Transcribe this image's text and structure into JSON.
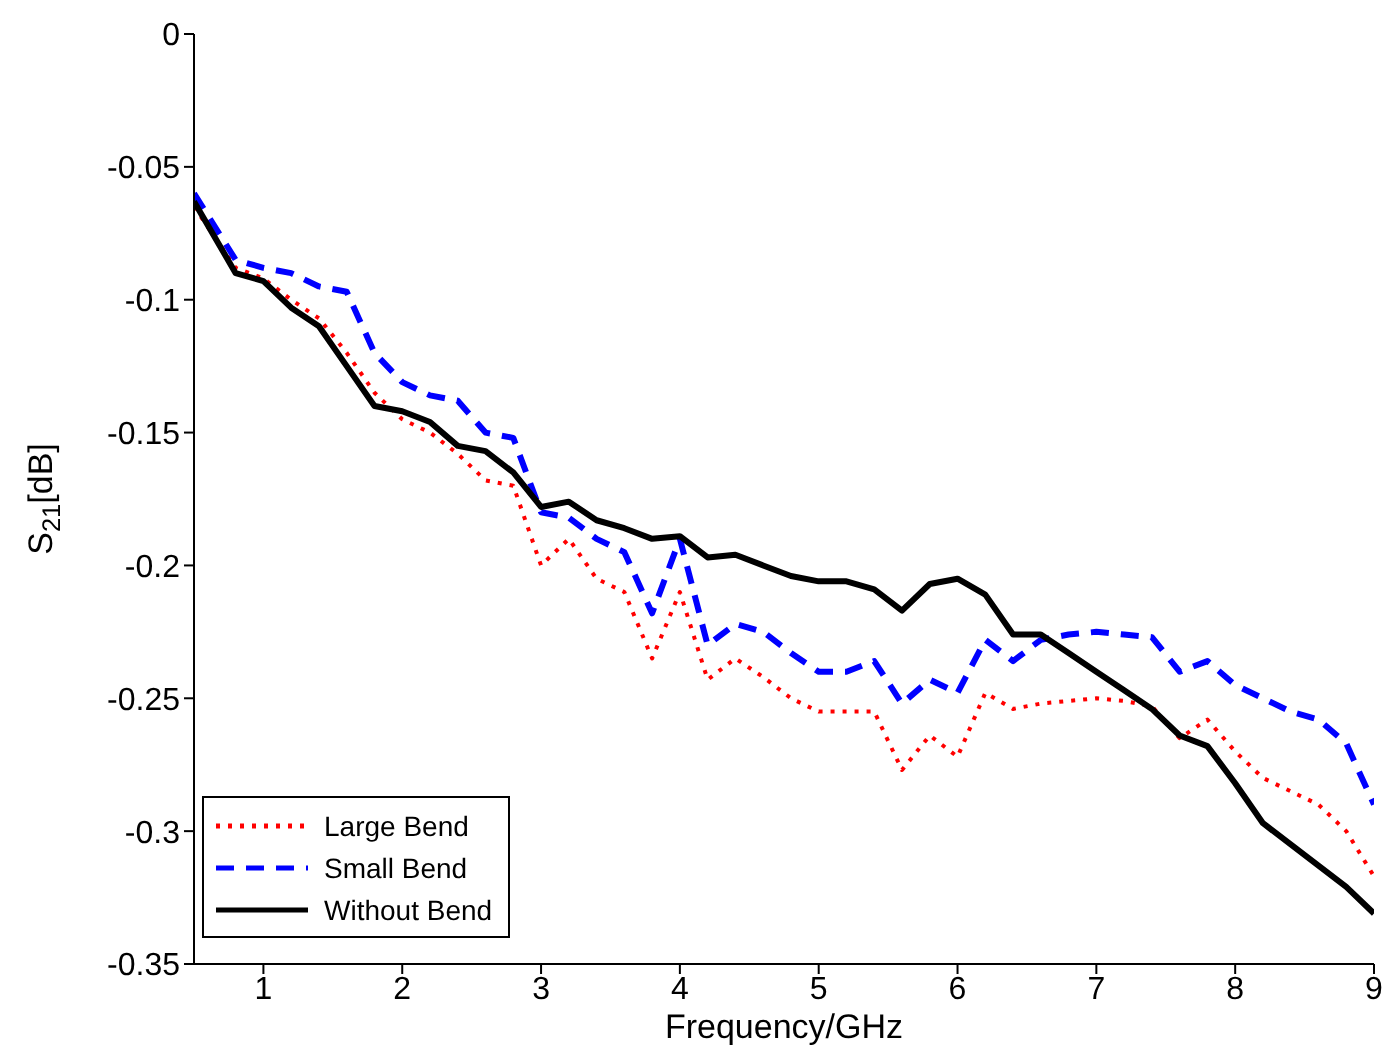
{
  "chart_data": {
    "type": "line",
    "xlabel": "Frequency/GHz",
    "ylabel": "S$_{21}$[dB]",
    "x": [
      0.5,
      0.8,
      1,
      1.2,
      1.4,
      1.6,
      1.8,
      2,
      2.2,
      2.4,
      2.6,
      2.8,
      3,
      3.2,
      3.4,
      3.6,
      3.8,
      4,
      4.2,
      4.4,
      4.6,
      4.8,
      5,
      5.2,
      5.4,
      5.6,
      5.8,
      6,
      6.2,
      6.4,
      6.6,
      6.8,
      7,
      7.2,
      7.4,
      7.6,
      7.8,
      8,
      8.2,
      8.4,
      8.6,
      8.8,
      9
    ],
    "series": [
      {
        "name": "Large Bend",
        "color": "#ff0000",
        "line_style": "dotted",
        "values": [
          -0.065,
          -0.088,
          -0.092,
          -0.1,
          -0.107,
          -0.12,
          -0.135,
          -0.145,
          -0.15,
          -0.158,
          -0.168,
          -0.17,
          -0.2,
          -0.19,
          -0.205,
          -0.21,
          -0.235,
          -0.21,
          -0.243,
          -0.235,
          -0.242,
          -0.25,
          -0.255,
          -0.255,
          -0.255,
          -0.277,
          -0.264,
          -0.272,
          -0.248,
          -0.254,
          -0.252,
          -0.251,
          -0.25,
          -0.251,
          -0.253,
          -0.265,
          -0.258,
          -0.27,
          -0.28,
          -0.285,
          -0.29,
          -0.3,
          -0.317
        ]
      },
      {
        "name": "Small Bend",
        "color": "#0000ff",
        "line_style": "dashed",
        "values": [
          -0.06,
          -0.085,
          -0.088,
          -0.09,
          -0.095,
          -0.097,
          -0.12,
          -0.131,
          -0.136,
          -0.138,
          -0.15,
          -0.152,
          -0.18,
          -0.182,
          -0.19,
          -0.195,
          -0.218,
          -0.19,
          -0.23,
          -0.222,
          -0.225,
          -0.233,
          -0.24,
          -0.24,
          -0.236,
          -0.252,
          -0.243,
          -0.248,
          -0.228,
          -0.236,
          -0.228,
          -0.226,
          -0.225,
          -0.226,
          -0.227,
          -0.24,
          -0.236,
          -0.245,
          -0.25,
          -0.255,
          -0.258,
          -0.267,
          -0.29
        ]
      },
      {
        "name": "Without Bend",
        "color": "#000000",
        "line_style": "solid",
        "values": [
          -0.063,
          -0.09,
          -0.093,
          -0.103,
          -0.11,
          -0.125,
          -0.14,
          -0.142,
          -0.146,
          -0.155,
          -0.157,
          -0.165,
          -0.178,
          -0.176,
          -0.183,
          -0.186,
          -0.19,
          -0.189,
          -0.197,
          -0.196,
          -0.2,
          -0.204,
          -0.206,
          -0.206,
          -0.209,
          -0.217,
          -0.207,
          -0.205,
          -0.211,
          -0.226,
          -0.226,
          -0.233,
          -0.24,
          -0.247,
          -0.254,
          -0.264,
          -0.268,
          -0.282,
          -0.297,
          -0.305,
          -0.313,
          -0.321,
          -0.331
        ]
      }
    ],
    "xlim": [
      0.5,
      9
    ],
    "xticks": [
      1,
      2,
      3,
      4,
      5,
      6,
      7,
      8,
      9
    ],
    "ylim": [
      -0.35,
      0
    ],
    "yticks": [
      -0.35,
      -0.3,
      -0.25,
      -0.2,
      -0.15,
      -0.1,
      -0.05,
      0
    ],
    "grid": false,
    "legend": "bottom left"
  }
}
